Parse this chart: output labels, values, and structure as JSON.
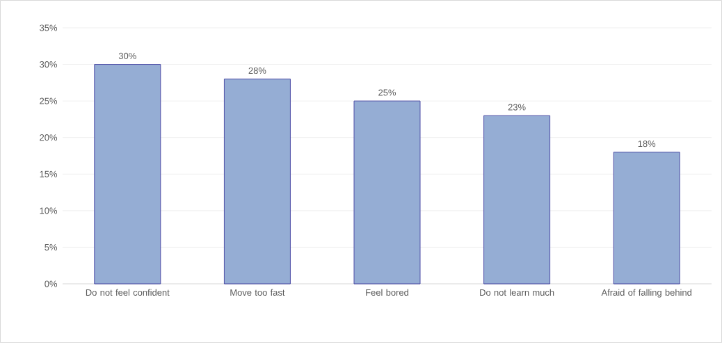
{
  "chart_data": {
    "type": "bar",
    "categories": [
      "Do not feel confident",
      "Move too fast",
      "Feel bored",
      "Do not learn much",
      "Afraid of falling behind"
    ],
    "values": [
      30,
      28,
      25,
      23,
      18
    ],
    "value_labels": [
      "30%",
      "28%",
      "25%",
      "23%",
      "18%"
    ],
    "color": "#95add4",
    "ylim": [
      0,
      35
    ],
    "yticks": [
      {
        "value": 0,
        "label": "0%"
      },
      {
        "value": 5,
        "label": "5%"
      },
      {
        "value": 10,
        "label": "10%"
      },
      {
        "value": 15,
        "label": "15%"
      },
      {
        "value": 20,
        "label": "20%"
      },
      {
        "value": 25,
        "label": "25%"
      },
      {
        "value": 30,
        "label": "30%"
      },
      {
        "value": 35,
        "label": "35%"
      }
    ],
    "grid": true
  }
}
